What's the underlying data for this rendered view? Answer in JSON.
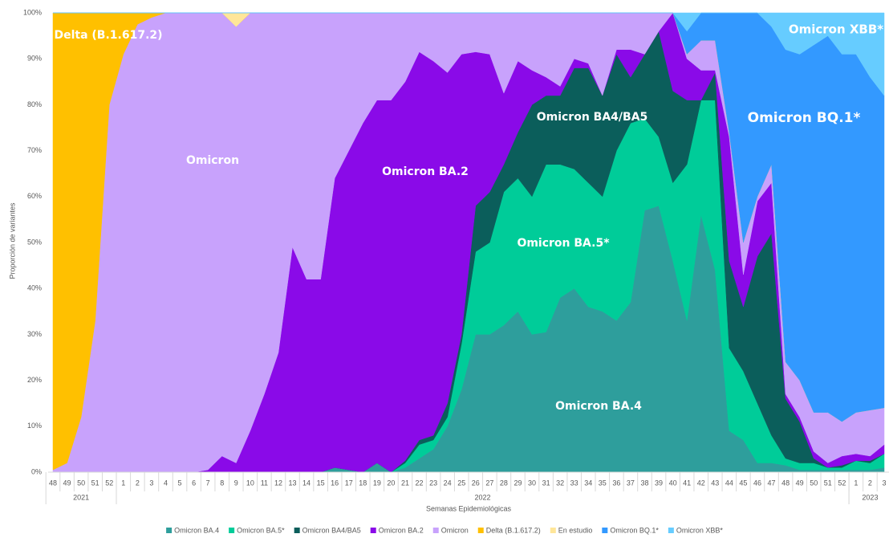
{
  "chart_data": {
    "type": "stacked_area",
    "y_label": "Proporción de variantes",
    "x_label": "Semanas Epidemiológicas",
    "x_groups": [
      "2021",
      "2022",
      "2023"
    ],
    "categories": [
      "48",
      "49",
      "50",
      "51",
      "52",
      "1",
      "2",
      "3",
      "4",
      "5",
      "6",
      "7",
      "8",
      "9",
      "10",
      "11",
      "12",
      "13",
      "14",
      "15",
      "16",
      "17",
      "18",
      "19",
      "20",
      "21",
      "22",
      "23",
      "24",
      "25",
      "26",
      "27",
      "28",
      "29",
      "30",
      "31",
      "32",
      "33",
      "34",
      "35",
      "36",
      "37",
      "38",
      "39",
      "40",
      "41",
      "42",
      "43",
      "44",
      "45",
      "46",
      "47",
      "48",
      "49",
      "50",
      "51",
      "52",
      "1",
      "2",
      "3"
    ],
    "ylim": [
      0,
      100
    ],
    "yticks": [
      {
        "value": 0,
        "label": "0%"
      },
      {
        "value": 10,
        "label": "10%"
      },
      {
        "value": 20,
        "label": "20%"
      },
      {
        "value": 30,
        "label": "30%"
      },
      {
        "value": 40,
        "label": "40%"
      },
      {
        "value": 50,
        "label": "50%"
      },
      {
        "value": 60,
        "label": "60%"
      },
      {
        "value": 70,
        "label": "70%"
      },
      {
        "value": 80,
        "label": "80%"
      },
      {
        "value": 90,
        "label": "90%"
      },
      {
        "value": 100,
        "label": "100%"
      }
    ],
    "grid": false,
    "legend": "bottom",
    "annotations": [
      "Delta (B.1.617.2)",
      "Omicron",
      "Omicron BA.2",
      "Omicron BA4/BA5",
      "Omicron BA.5*",
      "Omicron BA.4",
      "Omicron BQ.1*",
      "Omicron XBB*"
    ],
    "series": [
      {
        "name": "Omicron BA.4",
        "color": "#2e9e9c",
        "values": [
          0,
          0,
          0,
          0,
          0,
          0,
          0,
          0,
          0,
          0,
          0,
          0,
          0,
          0,
          0,
          0,
          0,
          0,
          0,
          0,
          1,
          0.5,
          0,
          2,
          0,
          1,
          3,
          5,
          10,
          18,
          30,
          30,
          32,
          35,
          30,
          30.5,
          38,
          40,
          36,
          35,
          33,
          37,
          57,
          58,
          46,
          33,
          56,
          44,
          9,
          7,
          2,
          2,
          1.5,
          0.5,
          0.5,
          0.5,
          0.5,
          0.5,
          0.5,
          1
        ]
      },
      {
        "name": "Omicron BA.5*",
        "color": "#00cc99",
        "values": [
          0,
          0,
          0,
          0,
          0,
          0,
          0,
          0,
          0,
          0,
          0,
          0,
          0,
          0,
          0,
          0,
          0,
          0,
          0,
          0,
          0,
          0,
          0,
          0,
          0,
          1,
          3,
          2,
          2,
          10,
          18,
          20,
          29,
          29,
          30,
          36.5,
          29,
          26,
          27,
          25,
          37,
          39,
          20,
          15,
          17,
          34,
          25,
          37,
          18,
          15,
          13,
          6,
          1.5,
          1.5,
          1.5,
          0.5,
          0.5,
          2,
          1.5,
          3
        ]
      },
      {
        "name": "Omicron BA4/BA5",
        "color": "#0b5e5b",
        "values": [
          0,
          0,
          0,
          0,
          0,
          0,
          0,
          0,
          0,
          0,
          0,
          0,
          0,
          0,
          0,
          0,
          0,
          0,
          0,
          0,
          0,
          0,
          0,
          0,
          0,
          0.5,
          1,
          1,
          3,
          2,
          10,
          11,
          6,
          10,
          20,
          15,
          15,
          22,
          25,
          22,
          21,
          10,
          14,
          23,
          20,
          14,
          0,
          6,
          19,
          14,
          32,
          44,
          13,
          9,
          1,
          0,
          0.5,
          0,
          0.5,
          0
        ]
      },
      {
        "name": "Omicron BA.2",
        "color": "#8a0ae8",
        "values": [
          0,
          0,
          0,
          0,
          0,
          0,
          0,
          0,
          0,
          0,
          0,
          0.5,
          3.5,
          2,
          9,
          17,
          26,
          49,
          42,
          42,
          63,
          69.5,
          76,
          79,
          81,
          82.5,
          84.5,
          81.5,
          72,
          61,
          33.5,
          30,
          15.5,
          15.5,
          7.5,
          4,
          2,
          2,
          1,
          0,
          1,
          6,
          0,
          0,
          17,
          9,
          6.5,
          0.5,
          27,
          7,
          12,
          11,
          1,
          1,
          1.5,
          1,
          2,
          1.5,
          1,
          2
        ]
      },
      {
        "name": "Omicron",
        "color": "#c8a2fc",
        "values": [
          0.5,
          2,
          12,
          33,
          80,
          91,
          97.5,
          99,
          100,
          100,
          100,
          99.5,
          96.5,
          95,
          91,
          83,
          74,
          51,
          58,
          58,
          36,
          30,
          24,
          19,
          19,
          15,
          8.5,
          10.5,
          13,
          9,
          8.5,
          9,
          17.5,
          10.5,
          12.5,
          14,
          16,
          10,
          11,
          18,
          8,
          8,
          9,
          4,
          0,
          1,
          6.5,
          6.5,
          1,
          7,
          1,
          4,
          7,
          8,
          8.5,
          11,
          7.5,
          9,
          10,
          8
        ]
      },
      {
        "name": "Delta (B.1.617.2)",
        "color": "#ffc000",
        "values": [
          99.5,
          98,
          88,
          67,
          20,
          9,
          2.5,
          1,
          0,
          0,
          0,
          0,
          0,
          0,
          0,
          0,
          0,
          0,
          0,
          0,
          0,
          0,
          0,
          0,
          0,
          0,
          0,
          0,
          0,
          0,
          0,
          0,
          0,
          0,
          0,
          0,
          0,
          0,
          0,
          0,
          0,
          0,
          0,
          0,
          0,
          0,
          0,
          0,
          0,
          0,
          0,
          0,
          0,
          0,
          0,
          0,
          0,
          0,
          0,
          0
        ]
      },
      {
        "name": "En estudio",
        "color": "#ffe699",
        "values": [
          0,
          0,
          0,
          0,
          0,
          0,
          0,
          0,
          0,
          0,
          0,
          0,
          0,
          3,
          0,
          0,
          0,
          0,
          0,
          0,
          0,
          0,
          0,
          0,
          0,
          0,
          0,
          0,
          0,
          0,
          0,
          0,
          0,
          0,
          0,
          0,
          0,
          0,
          0,
          0,
          0,
          0,
          0,
          0,
          0,
          0,
          0,
          0,
          0,
          0,
          0,
          0,
          0,
          0,
          0,
          0,
          0,
          0,
          0,
          0
        ]
      },
      {
        "name": "Omicron BQ.1*",
        "color": "#3399ff",
        "values": [
          0,
          0,
          0,
          0,
          0,
          0,
          0,
          0,
          0,
          0,
          0,
          0,
          0,
          0,
          0,
          0,
          0,
          0,
          0,
          0,
          0,
          0,
          0,
          0,
          0,
          0,
          0,
          0,
          0,
          0,
          0,
          0,
          0,
          0,
          0,
          0,
          0,
          0,
          0,
          0,
          0,
          0,
          0,
          0,
          0,
          5,
          6,
          6,
          26,
          50,
          40,
          30,
          68,
          71,
          80,
          82,
          80,
          78,
          72.5,
          68
        ]
      },
      {
        "name": "Omicron XBB*",
        "color": "#66ccff",
        "values": [
          0,
          0,
          0,
          0,
          0,
          0,
          0,
          0,
          0,
          0,
          0,
          0,
          0,
          0,
          0,
          0,
          0,
          0,
          0,
          0,
          0,
          0,
          0,
          0,
          0,
          0,
          0,
          0,
          0,
          0,
          0,
          0,
          0,
          0,
          0,
          0,
          0,
          0,
          0,
          0,
          0,
          0,
          0,
          0,
          0,
          4,
          0,
          0,
          0,
          0,
          0,
          3,
          8,
          9,
          7,
          5,
          9,
          9,
          14,
          18
        ]
      }
    ]
  }
}
